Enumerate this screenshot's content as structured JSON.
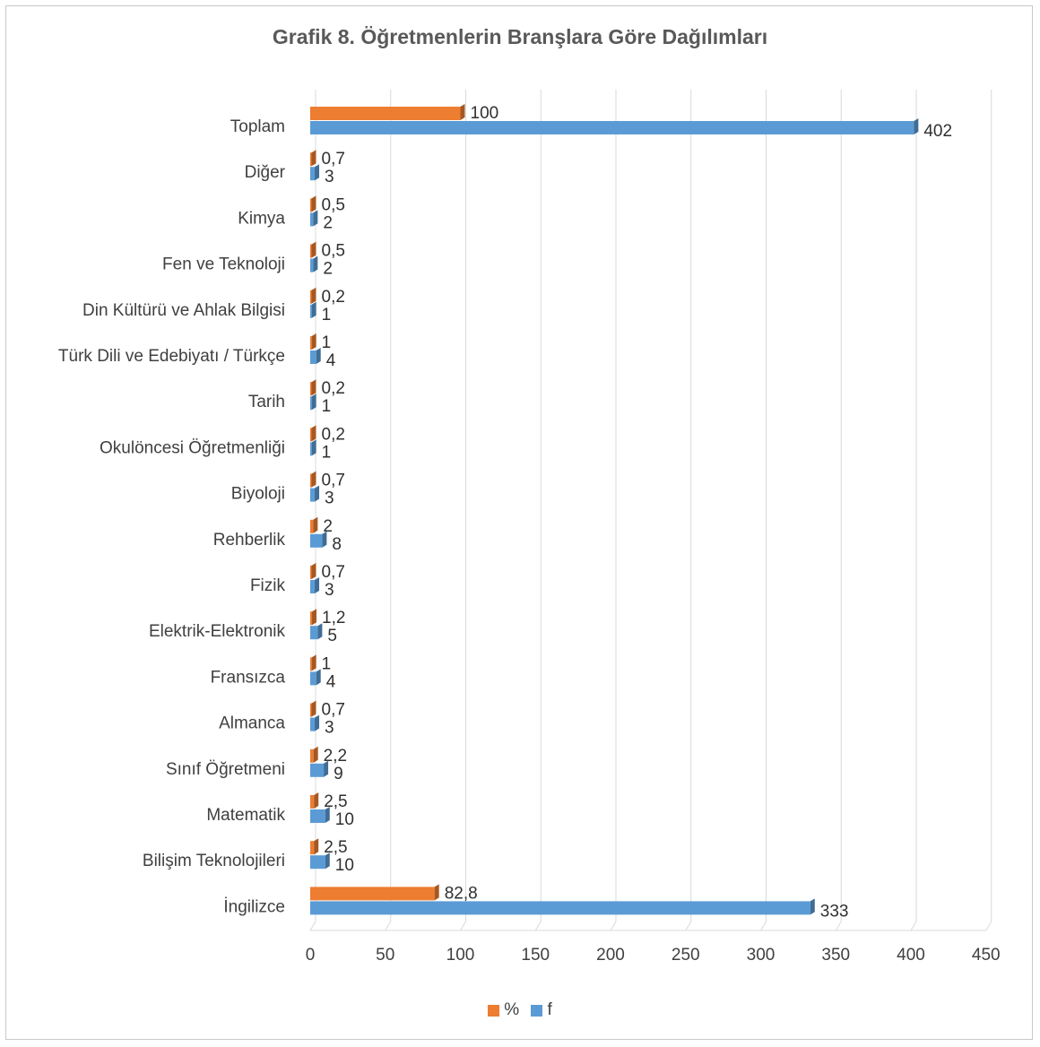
{
  "chart_data": {
    "type": "bar",
    "orientation": "horizontal",
    "title": "Grafik 8. Öğretmenlerin Branşlara Göre Dağılımları",
    "xlim": [
      0,
      450
    ],
    "xticks": [
      0,
      50,
      100,
      150,
      200,
      250,
      300,
      350,
      400,
      450
    ],
    "grid": "vertical",
    "legend_position": "bottom",
    "categories": [
      "Toplam",
      "Diğer",
      "Kimya",
      "Fen ve Teknoloji",
      "Din Kültürü ve Ahlak Bilgisi",
      "Türk Dili ve Edebiyatı / Türkçe",
      "Tarih",
      "Okulöncesi Öğretmenliği",
      "Biyoloji",
      "Rehberlik",
      "Fizik",
      "Elektrik-Elektronik",
      "Fransızca",
      "Almanca",
      "Sınıf Öğretmeni",
      "Matematik",
      "Bilişim Teknolojileri",
      "İngilizce"
    ],
    "series": [
      {
        "name": "%",
        "color": "#ed7d31",
        "values": [
          100,
          0.7,
          0.5,
          0.5,
          0.2,
          1,
          0.2,
          0.2,
          0.7,
          2,
          0.7,
          1.2,
          1,
          0.7,
          2.2,
          2.5,
          2.5,
          82.8
        ],
        "labels": [
          "100",
          "0,7",
          "0,5",
          "0,5",
          "0,2",
          "1",
          "0,2",
          "0,2",
          "0,7",
          "2",
          "0,7",
          "1,2",
          "1",
          "0,7",
          "2,2",
          "2,5",
          "2,5",
          "82,8"
        ]
      },
      {
        "name": "f",
        "color": "#5b9bd5",
        "values": [
          402,
          3,
          2,
          2,
          1,
          4,
          1,
          1,
          3,
          8,
          3,
          5,
          4,
          3,
          9,
          10,
          10,
          333
        ],
        "labels": [
          "402",
          "3",
          "2",
          "2",
          "1",
          "4",
          "1",
          "1",
          "3",
          "8",
          "3",
          "5",
          "4",
          "3",
          "9",
          "10",
          "10",
          "333"
        ]
      }
    ]
  }
}
